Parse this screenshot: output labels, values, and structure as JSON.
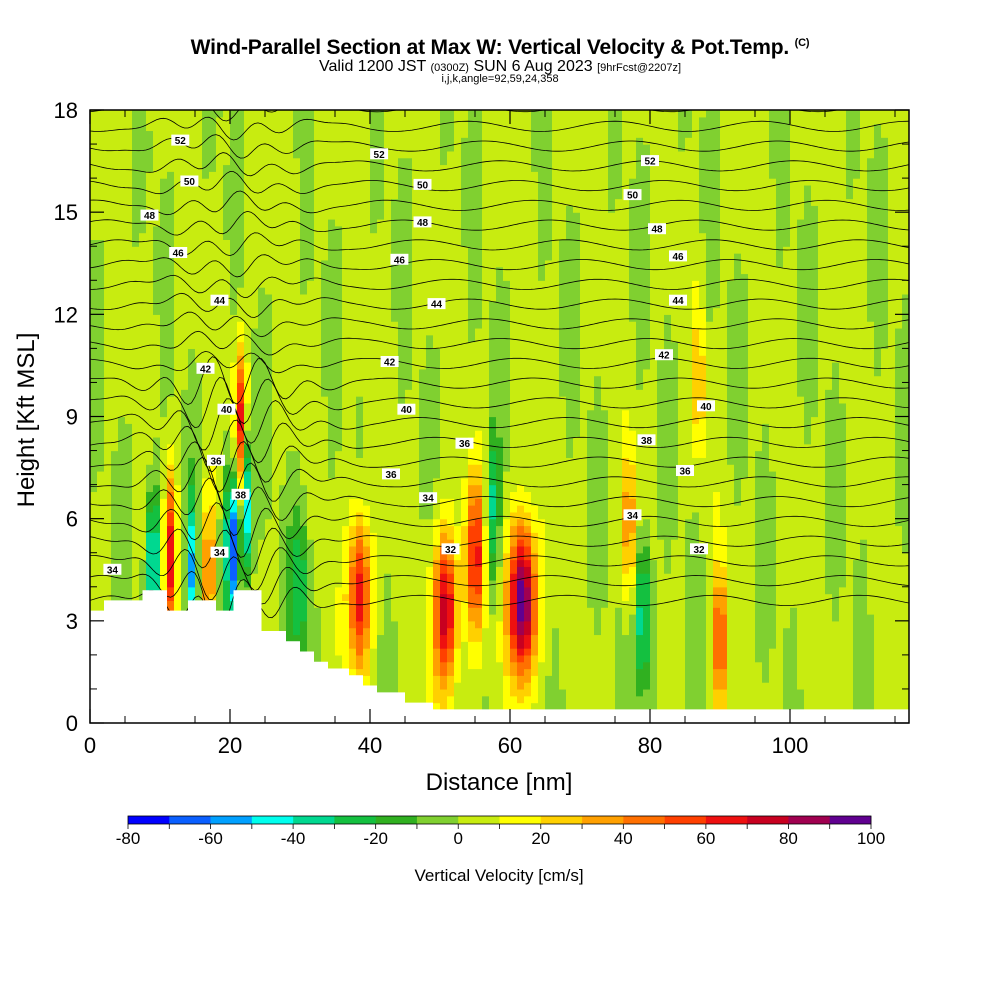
{
  "title": {
    "main": "Wind-Parallel Section at Max W: Vertical Velocity & Pot.Temp.",
    "copyright": "(C)",
    "valid_prefix": "Valid 1200 JST",
    "valid_zulu": "(0300Z)",
    "valid_date": "SUN 6 Aug 2023",
    "forecast": "[9hrFcst@2207z]",
    "indices": "i,j,k,angle=92,59,24,358"
  },
  "chart_data": {
    "type": "heatmap",
    "xlabel": "Distance [nm]",
    "ylabel": "Height [Kft MSL]",
    "xlim": [
      0,
      117
    ],
    "ylim": [
      0,
      18
    ],
    "x_ticks": [
      0,
      20,
      40,
      60,
      80,
      100
    ],
    "y_ticks": [
      0,
      3,
      6,
      9,
      12,
      15,
      18
    ],
    "colorbar": {
      "title": "Vertical Velocity [cm/s]",
      "min": -80,
      "max": 100,
      "step": 10,
      "tick_values": [
        -80,
        -60,
        -40,
        -20,
        0,
        20,
        40,
        60,
        80,
        100
      ],
      "tick_labels": [
        "-80",
        "-60",
        "-40",
        "-20",
        "0",
        "20",
        "40",
        "60",
        "80",
        "100"
      ],
      "colors": [
        "#0000ff",
        "#0a5fff",
        "#00a0ff",
        "#00ffee",
        "#00d890",
        "#14c040",
        "#30b020",
        "#80d030",
        "#c8ec10",
        "#ffff00",
        "#ffd000",
        "#ffa000",
        "#ff7000",
        "#ff4000",
        "#ee1010",
        "#c80020",
        "#a00050",
        "#600090"
      ]
    },
    "terrain_kft": [
      [
        0,
        3.3
      ],
      [
        2,
        3.6
      ],
      [
        7.5,
        3.9
      ],
      [
        11,
        3.3
      ],
      [
        14,
        3.6
      ],
      [
        18,
        3.3
      ],
      [
        20.5,
        3.9
      ],
      [
        24.5,
        2.7
      ],
      [
        28,
        2.4
      ],
      [
        30,
        2.1
      ],
      [
        32,
        1.8
      ],
      [
        34,
        1.6
      ],
      [
        37,
        1.4
      ],
      [
        39,
        1.1
      ],
      [
        41,
        0.9
      ],
      [
        45,
        0.6
      ],
      [
        49,
        0.4
      ],
      [
        61.5,
        0.4
      ]
    ],
    "theta_contour_labels": [
      {
        "x": 3.2,
        "y": 4.5,
        "value": "34"
      },
      {
        "x": 18.5,
        "y": 5.0,
        "value": "34"
      },
      {
        "x": 21.5,
        "y": 6.7,
        "value": "38"
      },
      {
        "x": 18.0,
        "y": 7.7,
        "value": "36"
      },
      {
        "x": 19.5,
        "y": 9.2,
        "value": "40"
      },
      {
        "x": 16.5,
        "y": 10.4,
        "value": "42"
      },
      {
        "x": 18.5,
        "y": 12.4,
        "value": "44"
      },
      {
        "x": 12.6,
        "y": 13.8,
        "value": "46"
      },
      {
        "x": 8.5,
        "y": 14.9,
        "value": "48"
      },
      {
        "x": 14.2,
        "y": 15.9,
        "value": "50"
      },
      {
        "x": 12.9,
        "y": 17.1,
        "value": "52"
      },
      {
        "x": 41.3,
        "y": 16.7,
        "value": "52"
      },
      {
        "x": 47.5,
        "y": 15.8,
        "value": "50"
      },
      {
        "x": 47.5,
        "y": 14.7,
        "value": "48"
      },
      {
        "x": 44.2,
        "y": 13.6,
        "value": "46"
      },
      {
        "x": 49.5,
        "y": 12.3,
        "value": "44"
      },
      {
        "x": 42.8,
        "y": 10.6,
        "value": "42"
      },
      {
        "x": 45.2,
        "y": 9.2,
        "value": "40"
      },
      {
        "x": 53.5,
        "y": 8.2,
        "value": "36"
      },
      {
        "x": 43.0,
        "y": 7.3,
        "value": "36"
      },
      {
        "x": 48.3,
        "y": 6.6,
        "value": "34"
      },
      {
        "x": 51.5,
        "y": 5.1,
        "value": "32"
      },
      {
        "x": 80.0,
        "y": 16.5,
        "value": "52"
      },
      {
        "x": 77.5,
        "y": 15.5,
        "value": "50"
      },
      {
        "x": 81.0,
        "y": 14.5,
        "value": "48"
      },
      {
        "x": 84.0,
        "y": 13.7,
        "value": "46"
      },
      {
        "x": 84.0,
        "y": 12.4,
        "value": "44"
      },
      {
        "x": 82.0,
        "y": 10.8,
        "value": "42"
      },
      {
        "x": 88.0,
        "y": 9.3,
        "value": "40"
      },
      {
        "x": 79.5,
        "y": 8.3,
        "value": "38"
      },
      {
        "x": 85.0,
        "y": 7.4,
        "value": "36"
      },
      {
        "x": 77.5,
        "y": 6.1,
        "value": "34"
      },
      {
        "x": 87.0,
        "y": 5.1,
        "value": "32"
      }
    ],
    "updraft_cores": [
      {
        "x": 38.5,
        "y": 3.8,
        "peak": 70,
        "width_nm": 1.6
      },
      {
        "x": 50.8,
        "y": 3.3,
        "peak": 75,
        "width_nm": 1.8
      },
      {
        "x": 55.0,
        "y": 4.9,
        "peak": 60,
        "width_nm": 1.4
      },
      {
        "x": 61.8,
        "y": 3.6,
        "peak": 100,
        "width_nm": 2.0
      },
      {
        "x": 21.5,
        "y": 8.8,
        "peak": 65,
        "width_nm": 0.9
      },
      {
        "x": 11.5,
        "y": 5.0,
        "peak": 60,
        "width_nm": 0.8
      },
      {
        "x": 17.0,
        "y": 4.5,
        "peak": 50,
        "width_nm": 0.8
      },
      {
        "x": 90.0,
        "y": 2.3,
        "peak": 55,
        "width_nm": 1.0
      },
      {
        "x": 77.0,
        "y": 5.8,
        "peak": 40,
        "width_nm": 1.0
      },
      {
        "x": 87.0,
        "y": 10.0,
        "peak": 30,
        "width_nm": 0.8
      }
    ],
    "downdraft_cores": [
      {
        "x": 9.0,
        "y": 4.6,
        "peak": -55,
        "width_nm": 0.9
      },
      {
        "x": 14.5,
        "y": 4.4,
        "peak": -50,
        "width_nm": 0.7
      },
      {
        "x": 20.3,
        "y": 5.2,
        "peak": -80,
        "width_nm": 0.9
      },
      {
        "x": 22.3,
        "y": 6.5,
        "peak": -60,
        "width_nm": 0.8
      },
      {
        "x": 79.0,
        "y": 3.2,
        "peak": -45,
        "width_nm": 1.2
      },
      {
        "x": 30.0,
        "y": 4.0,
        "peak": -30,
        "width_nm": 1.5
      },
      {
        "x": 57.5,
        "y": 6.3,
        "peak": -35,
        "width_nm": 1.0
      }
    ]
  }
}
